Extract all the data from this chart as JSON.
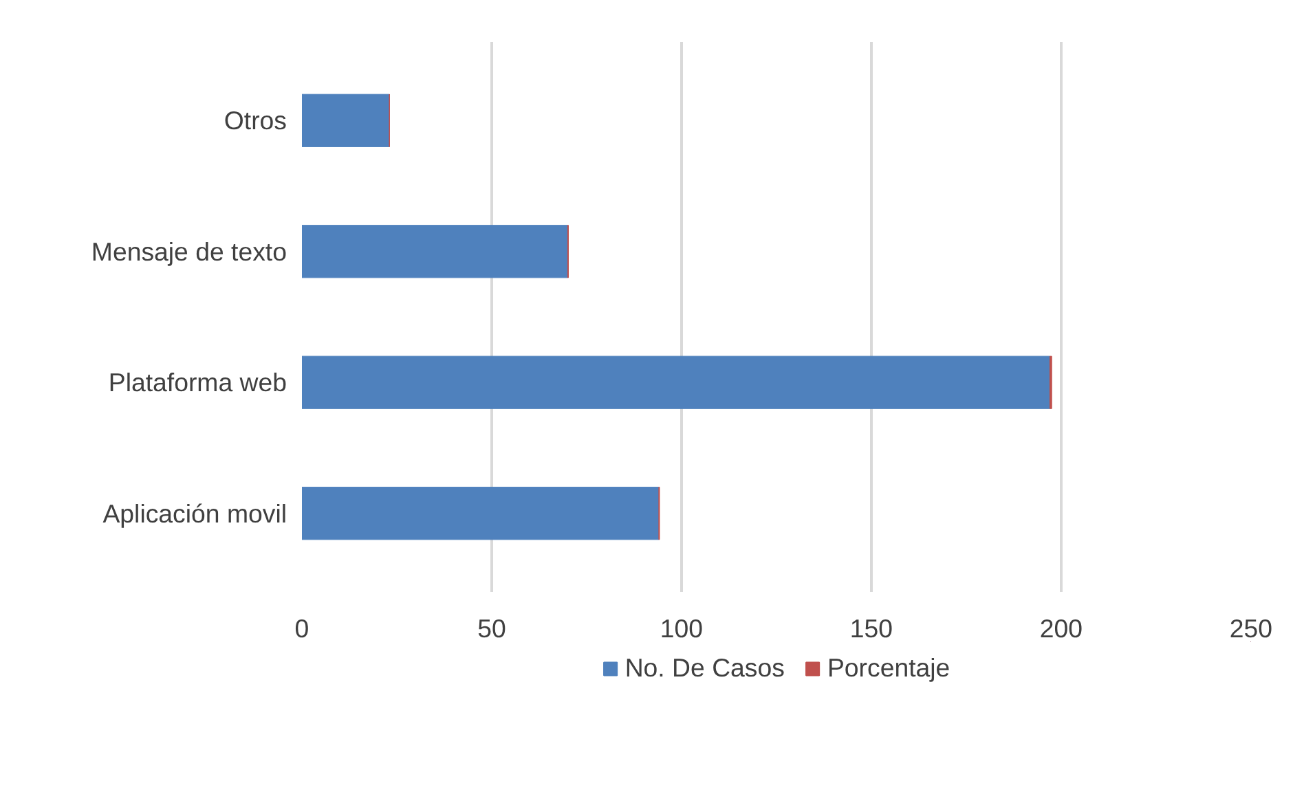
{
  "chart_data": {
    "type": "bar",
    "orientation": "horizontal",
    "stacked": true,
    "categories": [
      "Otros",
      "Mensaje de texto",
      "Plataforma web",
      "Aplicación movil"
    ],
    "series": [
      {
        "name": "No. De Casos",
        "color": "#4f81bd",
        "values": [
          23,
          70,
          197,
          94
        ]
      },
      {
        "name": "Porcentaje",
        "color": "#c0504d",
        "values": [
          0.1,
          0.2,
          0.5,
          0.2
        ]
      }
    ],
    "xlim": [
      0,
      250
    ],
    "xticks": [
      0,
      50,
      100,
      150,
      200,
      250
    ],
    "grid": "x",
    "legend": "bottom"
  }
}
